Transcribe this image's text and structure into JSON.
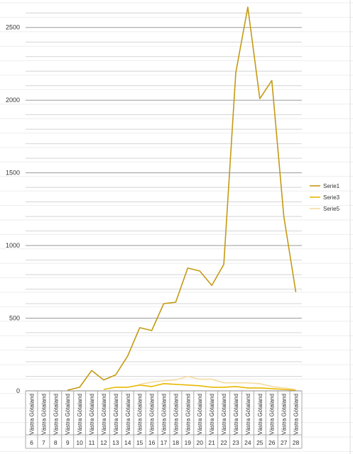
{
  "chart_data": {
    "type": "line",
    "title": "",
    "xlabel": "",
    "ylabel": "",
    "ylim": [
      0,
      2650
    ],
    "y_ticks": [
      0,
      500,
      1000,
      1500,
      2000,
      2500
    ],
    "y_tick_labels": [
      "0",
      "500",
      "1000",
      "1500",
      "2000",
      "2500"
    ],
    "grid": true,
    "legend_position": "right",
    "region_label": "Västra Götaland",
    "categories": [
      "6",
      "7",
      "8",
      "9",
      "10",
      "11",
      "12",
      "13",
      "14",
      "15",
      "16",
      "17",
      "18",
      "19",
      "20",
      "21",
      "22",
      "23",
      "24",
      "25",
      "26",
      "27",
      "28"
    ],
    "series": [
      {
        "name": "Serie1",
        "color": "#c59a12",
        "values": [
          null,
          null,
          null,
          5,
          25,
          140,
          75,
          110,
          240,
          435,
          415,
          600,
          610,
          845,
          825,
          725,
          870,
          2190,
          2640,
          2010,
          2135,
          1200,
          680
        ]
      },
      {
        "name": "Serie3",
        "color": "#e8b800",
        "values": [
          null,
          null,
          null,
          null,
          null,
          null,
          10,
          25,
          25,
          40,
          30,
          50,
          45,
          40,
          35,
          25,
          25,
          30,
          20,
          20,
          15,
          10,
          5
        ]
      },
      {
        "name": "Serie5",
        "color": "#f5dba0",
        "values": [
          null,
          null,
          null,
          null,
          null,
          null,
          null,
          null,
          null,
          45,
          60,
          70,
          75,
          100,
          80,
          80,
          55,
          55,
          55,
          50,
          30,
          20,
          10
        ]
      }
    ]
  }
}
